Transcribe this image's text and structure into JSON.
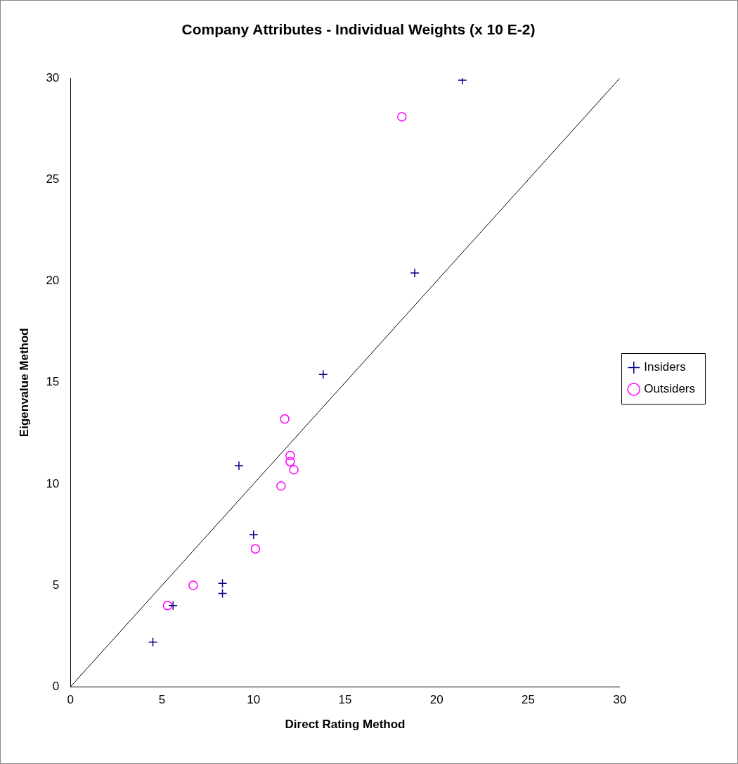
{
  "chart_data": {
    "type": "scatter",
    "title": "Company Attributes - Individual Weights (x 10 E-2)",
    "xlabel": "Direct Rating Method",
    "ylabel": "Eigenvalue Method",
    "xlim": [
      0,
      30
    ],
    "xticks": [
      0,
      5,
      10,
      15,
      20,
      25,
      30
    ],
    "ylim": [
      0,
      30
    ],
    "yticks": [
      0,
      5,
      10,
      15,
      20,
      25,
      30
    ],
    "grid": false,
    "legend": "right",
    "series": [
      {
        "name": "Insiders",
        "color": "#000080",
        "marker": "cross",
        "x": [
          21.4,
          18.8,
          13.8,
          9.2,
          10.0,
          8.3,
          8.3,
          5.6,
          4.5
        ],
        "values": [
          29.9,
          20.4,
          15.4,
          10.9,
          7.5,
          5.1,
          4.6,
          4.0,
          2.2
        ]
      },
      {
        "name": "Outsiders",
        "color": "#ff00ff",
        "marker": "circle",
        "x": [
          18.1,
          11.7,
          12.0,
          12.0,
          12.2,
          11.5,
          10.1,
          6.7,
          5.3
        ],
        "values": [
          28.1,
          13.2,
          11.4,
          11.1,
          10.7,
          9.9,
          6.8,
          5.0,
          4.0
        ]
      },
      {
        "type": "line",
        "color": "#000000",
        "marker": "none",
        "x": [
          0,
          30
        ],
        "values": [
          0,
          30
        ]
      }
    ]
  }
}
